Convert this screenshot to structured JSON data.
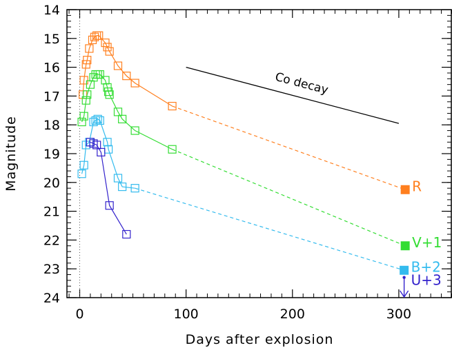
{
  "chart_data": {
    "type": "scatter",
    "xlabel": "Days after explosion",
    "ylabel": "Magnitude",
    "xlim": [
      -12,
      350
    ],
    "ylim": [
      24,
      14
    ],
    "y_inverted": true,
    "xticks": [
      "0",
      "100",
      "200",
      "300"
    ],
    "xtick_values": [
      0,
      100,
      200,
      300
    ],
    "yticks": [
      "14",
      "15",
      "16",
      "17",
      "18",
      "19",
      "20",
      "21",
      "22",
      "23",
      "24"
    ],
    "ytick_values": [
      14,
      15,
      16,
      17,
      18,
      19,
      20,
      21,
      22,
      23,
      24
    ],
    "grid": false,
    "explosion_marker_x": 0,
    "series": [
      {
        "name": "R",
        "color": "#ff7f1e",
        "values": [
          [
            3,
            16.95
          ],
          [
            4,
            16.45
          ],
          [
            6,
            15.9
          ],
          [
            7,
            15.75
          ],
          [
            9,
            15.35
          ],
          [
            12,
            15.05
          ],
          [
            14,
            14.95
          ],
          [
            16,
            14.9
          ],
          [
            18,
            14.9
          ],
          [
            24,
            15.15
          ],
          [
            26,
            15.3
          ],
          [
            28,
            15.45
          ],
          [
            36,
            15.95
          ],
          [
            44,
            16.3
          ],
          [
            52,
            16.55
          ],
          [
            87,
            17.35
          ]
        ],
        "late_point": [
          306,
          20.25
        ]
      },
      {
        "name": "V+1",
        "color": "#33dd33",
        "values": [
          [
            2,
            17.9
          ],
          [
            4,
            17.7
          ],
          [
            6,
            17.15
          ],
          [
            7,
            16.95
          ],
          [
            10,
            16.6
          ],
          [
            13,
            16.35
          ],
          [
            15,
            16.25
          ],
          [
            17,
            16.25
          ],
          [
            19,
            16.25
          ],
          [
            24,
            16.45
          ],
          [
            26,
            16.7
          ],
          [
            27,
            16.85
          ],
          [
            28,
            16.95
          ],
          [
            36,
            17.55
          ],
          [
            40,
            17.8
          ],
          [
            52,
            18.2
          ],
          [
            87,
            18.85
          ]
        ],
        "late_point": [
          306,
          22.2
        ]
      },
      {
        "name": "B+2",
        "color": "#33bbee",
        "values": [
          [
            2,
            19.7
          ],
          [
            4,
            19.4
          ],
          [
            6,
            18.7
          ],
          [
            9,
            18.6
          ],
          [
            13,
            17.9
          ],
          [
            15,
            17.85
          ],
          [
            17,
            17.8
          ],
          [
            19,
            17.85
          ],
          [
            26,
            18.6
          ],
          [
            27,
            18.85
          ],
          [
            36,
            19.85
          ],
          [
            40,
            20.15
          ],
          [
            52,
            20.2
          ]
        ],
        "late_point": [
          305,
          23.05
        ]
      },
      {
        "name": "U+3",
        "color": "#3322cc",
        "values": [
          [
            10,
            18.6
          ],
          [
            13,
            18.65
          ],
          [
            16,
            18.7
          ],
          [
            20,
            18.95
          ],
          [
            28,
            20.8
          ],
          [
            44,
            21.8
          ]
        ],
        "upper_limit": [
          305,
          23.3
        ]
      }
    ],
    "annotations": [
      {
        "text": "Co decay",
        "x1": 100,
        "y1": 16.0,
        "x2": 300,
        "y2": 17.95
      }
    ],
    "title": ""
  }
}
